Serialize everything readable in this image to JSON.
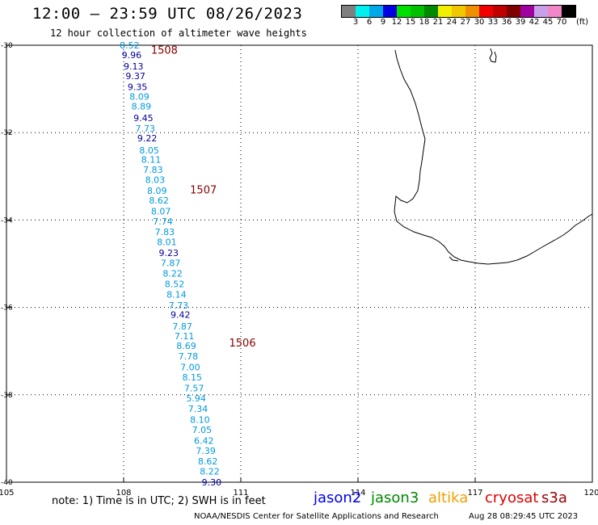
{
  "header": {
    "title": "12:00 – 23:59 UTC 08/26/2023",
    "subtitle": "12 hour collection of altimeter wave heights"
  },
  "colorbar": {
    "colors": [
      "#7f7f7f",
      "#00f0f0",
      "#00a8e8",
      "#0000e0",
      "#00e000",
      "#00c000",
      "#008800",
      "#f0f000",
      "#f0c800",
      "#f09000",
      "#f00000",
      "#c00000",
      "#800000",
      "#a000a0",
      "#c8a0e8",
      "#f088c8",
      "#000000"
    ],
    "labels": [
      "3",
      "6",
      "9",
      "12",
      "15",
      "18",
      "21",
      "24",
      "27",
      "30",
      "33",
      "36",
      "39",
      "42",
      "45",
      "70"
    ],
    "unit": "(ft)"
  },
  "axes": {
    "lon_ticks": [
      "105",
      "108",
      "111",
      "114",
      "117",
      "120"
    ],
    "lat_ticks": [
      "-30",
      "-32",
      "-34",
      "-36",
      "-38",
      "-40"
    ]
  },
  "colors": {
    "light": "#0099dd",
    "dark": "#000099",
    "pass": "#880000"
  },
  "passes": [
    {
      "id": "1508",
      "lon": 108.7,
      "lat": -30.1
    },
    {
      "id": "1507",
      "lon": 109.7,
      "lat": -33.3
    },
    {
      "id": "1506",
      "lon": 110.7,
      "lat": -36.8
    }
  ],
  "wave_heights": [
    {
      "lon": 107.9,
      "lat": -30.0,
      "v": "8.52",
      "c": "light"
    },
    {
      "lon": 107.95,
      "lat": -30.22,
      "v": "9.96",
      "c": "dark"
    },
    {
      "lon": 108.0,
      "lat": -30.48,
      "v": "9.13",
      "c": "dark"
    },
    {
      "lon": 108.05,
      "lat": -30.7,
      "v": "9.37",
      "c": "dark"
    },
    {
      "lon": 108.1,
      "lat": -30.95,
      "v": "9.35",
      "c": "dark"
    },
    {
      "lon": 108.15,
      "lat": -31.17,
      "v": "8.09",
      "c": "light"
    },
    {
      "lon": 108.2,
      "lat": -31.4,
      "v": "8.89",
      "c": "light"
    },
    {
      "lon": 108.25,
      "lat": -31.66,
      "v": "9.45",
      "c": "dark"
    },
    {
      "lon": 108.3,
      "lat": -31.9,
      "v": "7.73",
      "c": "light"
    },
    {
      "lon": 108.35,
      "lat": -32.13,
      "v": "9.22",
      "c": "dark"
    },
    {
      "lon": 108.4,
      "lat": -32.4,
      "v": "8.05",
      "c": "light"
    },
    {
      "lon": 108.45,
      "lat": -32.62,
      "v": "8.11",
      "c": "light"
    },
    {
      "lon": 108.5,
      "lat": -32.85,
      "v": "7.83",
      "c": "light"
    },
    {
      "lon": 108.55,
      "lat": -33.08,
      "v": "8.03",
      "c": "light"
    },
    {
      "lon": 108.6,
      "lat": -33.33,
      "v": "8.09",
      "c": "light"
    },
    {
      "lon": 108.65,
      "lat": -33.55,
      "v": "8.62",
      "c": "light"
    },
    {
      "lon": 108.7,
      "lat": -33.8,
      "v": "8.07",
      "c": "light"
    },
    {
      "lon": 108.75,
      "lat": -34.03,
      "v": "7.74",
      "c": "light"
    },
    {
      "lon": 108.8,
      "lat": -34.27,
      "v": "7.83",
      "c": "light"
    },
    {
      "lon": 108.85,
      "lat": -34.5,
      "v": "8.01",
      "c": "light"
    },
    {
      "lon": 108.9,
      "lat": -34.75,
      "v": "9.23",
      "c": "dark"
    },
    {
      "lon": 108.95,
      "lat": -34.98,
      "v": "7.87",
      "c": "light"
    },
    {
      "lon": 109.0,
      "lat": -35.22,
      "v": "8.22",
      "c": "light"
    },
    {
      "lon": 109.05,
      "lat": -35.46,
      "v": "8.52",
      "c": "light"
    },
    {
      "lon": 109.1,
      "lat": -35.7,
      "v": "8.14",
      "c": "light"
    },
    {
      "lon": 109.15,
      "lat": -35.95,
      "v": "7.73",
      "c": "light"
    },
    {
      "lon": 109.2,
      "lat": -36.16,
      "v": "9.42",
      "c": "dark"
    },
    {
      "lon": 109.25,
      "lat": -36.43,
      "v": "7.87",
      "c": "light"
    },
    {
      "lon": 109.3,
      "lat": -36.65,
      "v": "7.11",
      "c": "light"
    },
    {
      "lon": 109.35,
      "lat": -36.88,
      "v": "8.69",
      "c": "light"
    },
    {
      "lon": 109.4,
      "lat": -37.12,
      "v": "7.78",
      "c": "light"
    },
    {
      "lon": 109.45,
      "lat": -37.37,
      "v": "7.00",
      "c": "light"
    },
    {
      "lon": 109.5,
      "lat": -37.6,
      "v": "8.15",
      "c": "light"
    },
    {
      "lon": 109.55,
      "lat": -37.85,
      "v": "7.57",
      "c": "light"
    },
    {
      "lon": 109.6,
      "lat": -38.08,
      "v": "5.94",
      "c": "light"
    },
    {
      "lon": 109.65,
      "lat": -38.32,
      "v": "7.34",
      "c": "light"
    },
    {
      "lon": 109.7,
      "lat": -38.57,
      "v": "8.10",
      "c": "light"
    },
    {
      "lon": 109.75,
      "lat": -38.8,
      "v": "7.05",
      "c": "light"
    },
    {
      "lon": 109.8,
      "lat": -39.05,
      "v": "6.42",
      "c": "light"
    },
    {
      "lon": 109.85,
      "lat": -39.28,
      "v": "7.39",
      "c": "light"
    },
    {
      "lon": 109.9,
      "lat": -39.52,
      "v": "8.62",
      "c": "light"
    },
    {
      "lon": 109.95,
      "lat": -39.75,
      "v": "8.22",
      "c": "light"
    },
    {
      "lon": 110.0,
      "lat": -40.0,
      "v": "9.30",
      "c": "dark"
    }
  ],
  "note": "note: 1) Time is in UTC; 2) SWH is in feet",
  "legend": [
    {
      "label": "jason2",
      "color": "#0000ee"
    },
    {
      "label": "jason3",
      "color": "#008800"
    },
    {
      "label": "altika",
      "color": "#f0a000"
    },
    {
      "label": "cryosat",
      "color": "#e00000"
    },
    {
      "label": "s3a",
      "color": "#990000"
    }
  ],
  "footer": {
    "credit": "NOAA/NESDIS Center for Satellite Applications and Research",
    "timestamp": "Aug 28 08:29:45 UTC 2023"
  }
}
